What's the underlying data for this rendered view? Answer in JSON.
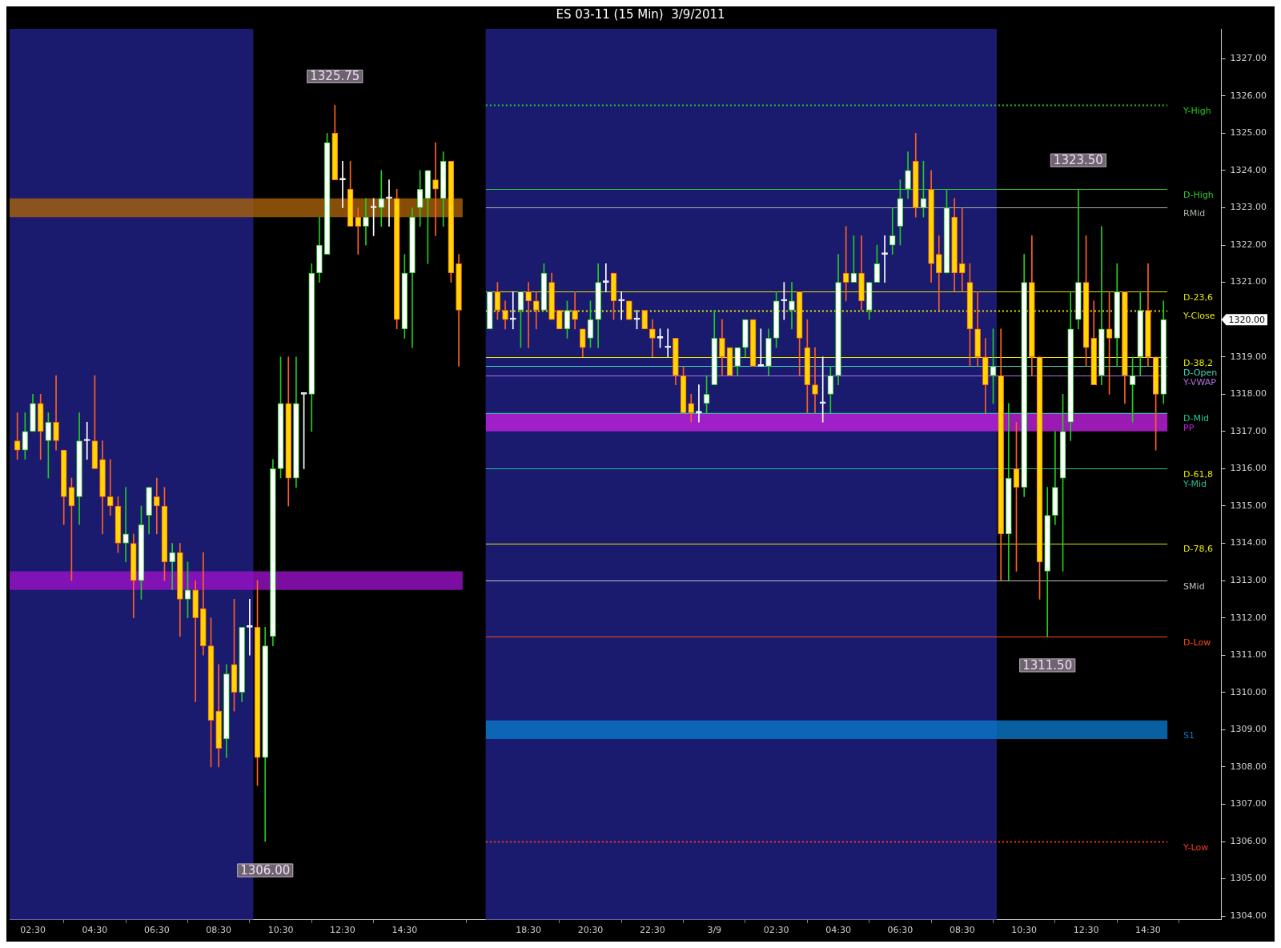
{
  "chart_data": {
    "type": "candlestick",
    "title": "ES 03-11 (15 Min)  3/9/2011",
    "x": [
      "2011-03-08T02:00",
      "2011-03-08T02:15",
      "2011-03-08T02:30",
      "2011-03-08T02:45",
      "2011-03-08T03:00",
      "2011-03-08T03:15",
      "2011-03-08T03:30",
      "2011-03-08T03:45",
      "2011-03-08T04:00",
      "2011-03-08T04:15",
      "2011-03-08T04:30",
      "2011-03-08T04:45",
      "2011-03-08T05:00",
      "2011-03-08T05:15",
      "2011-03-08T05:30",
      "2011-03-08T05:45",
      "2011-03-08T06:00",
      "2011-03-08T06:15",
      "2011-03-08T06:30",
      "2011-03-08T06:45",
      "2011-03-08T07:00",
      "2011-03-08T07:15",
      "2011-03-08T07:30",
      "2011-03-08T07:45",
      "2011-03-08T08:00",
      "2011-03-08T08:15",
      "2011-03-08T08:30",
      "2011-03-08T08:45",
      "2011-03-08T09:00",
      "2011-03-08T09:15",
      "2011-03-08T09:30",
      "2011-03-08T09:45",
      "2011-03-08T10:00",
      "2011-03-08T10:15",
      "2011-03-08T10:30",
      "2011-03-08T10:45",
      "2011-03-08T11:00",
      "2011-03-08T11:15",
      "2011-03-08T11:30",
      "2011-03-08T11:45",
      "2011-03-08T12:00",
      "2011-03-08T12:15",
      "2011-03-08T12:30",
      "2011-03-08T12:45",
      "2011-03-08T13:00",
      "2011-03-08T13:15",
      "2011-03-08T13:30",
      "2011-03-08T13:45",
      "2011-03-08T14:00",
      "2011-03-08T14:15",
      "2011-03-08T14:30",
      "2011-03-08T14:45",
      "2011-03-08T15:00",
      "2011-03-08T15:15",
      "2011-03-08T15:30",
      "2011-03-08T15:45",
      "2011-03-08T16:00",
      "2011-03-08T16:15",
      "2011-03-08T17:15",
      "2011-03-08T17:30",
      "2011-03-08T17:45",
      "2011-03-08T18:00",
      "2011-03-08T18:15",
      "2011-03-08T18:30",
      "2011-03-08T18:45",
      "2011-03-08T19:00",
      "2011-03-08T19:15",
      "2011-03-08T19:30",
      "2011-03-08T19:45",
      "2011-03-08T20:00",
      "2011-03-08T20:15",
      "2011-03-08T20:30",
      "2011-03-08T20:45",
      "2011-03-08T21:00",
      "2011-03-08T21:15",
      "2011-03-08T21:30",
      "2011-03-08T21:45",
      "2011-03-08T22:00",
      "2011-03-08T22:15",
      "2011-03-08T22:30",
      "2011-03-08T22:45",
      "2011-03-08T23:00",
      "2011-03-08T23:15",
      "2011-03-08T23:30",
      "2011-03-08T23:45",
      "2011-03-09T00:00",
      "2011-03-09T00:15",
      "2011-03-09T00:30",
      "2011-03-09T00:45",
      "2011-03-09T01:00",
      "2011-03-09T01:15",
      "2011-03-09T01:30",
      "2011-03-09T01:45",
      "2011-03-09T02:00",
      "2011-03-09T02:15",
      "2011-03-09T02:30",
      "2011-03-09T02:45",
      "2011-03-09T03:00",
      "2011-03-09T03:15",
      "2011-03-09T03:30",
      "2011-03-09T03:45",
      "2011-03-09T04:00",
      "2011-03-09T04:15",
      "2011-03-09T04:30",
      "2011-03-09T04:45",
      "2011-03-09T05:00",
      "2011-03-09T05:15",
      "2011-03-09T05:30",
      "2011-03-09T05:45",
      "2011-03-09T06:00",
      "2011-03-09T06:15",
      "2011-03-09T06:30",
      "2011-03-09T06:45",
      "2011-03-09T07:00",
      "2011-03-09T07:15",
      "2011-03-09T07:30",
      "2011-03-09T07:45",
      "2011-03-09T08:00",
      "2011-03-09T08:15",
      "2011-03-09T08:30",
      "2011-03-09T08:45",
      "2011-03-09T09:00",
      "2011-03-09T09:15",
      "2011-03-09T09:30",
      "2011-03-09T09:45",
      "2011-03-09T10:00",
      "2011-03-09T10:15",
      "2011-03-09T10:30",
      "2011-03-09T10:45",
      "2011-03-09T11:00",
      "2011-03-09T11:15",
      "2011-03-09T11:30",
      "2011-03-09T11:45",
      "2011-03-09T12:00",
      "2011-03-09T12:15",
      "2011-03-09T12:30",
      "2011-03-09T12:45",
      "2011-03-09T13:00",
      "2011-03-09T13:15",
      "2011-03-09T13:30",
      "2011-03-09T13:45",
      "2011-03-09T14:00",
      "2011-03-09T14:15",
      "2011-03-09T14:30",
      "2011-03-09T14:45",
      "2011-03-09T15:00"
    ],
    "ohlc": [
      [
        1316.75,
        1317.5,
        1316.25,
        1316.5
      ],
      [
        1316.5,
        1317.5,
        1316.25,
        1317.0
      ],
      [
        1317.0,
        1318.0,
        1317.0,
        1317.75
      ],
      [
        1317.75,
        1318.0,
        1316.25,
        1317.0
      ],
      [
        1316.75,
        1317.5,
        1315.75,
        1317.25
      ],
      [
        1317.25,
        1318.5,
        1316.5,
        1316.75
      ],
      [
        1316.5,
        1316.5,
        1314.5,
        1315.25
      ],
      [
        1315.5,
        1315.75,
        1313.0,
        1315.0
      ],
      [
        1315.25,
        1317.5,
        1314.5,
        1316.75
      ],
      [
        1316.75,
        1317.25,
        1316.25,
        1316.75
      ],
      [
        1316.75,
        1318.5,
        1316.0,
        1316.0
      ],
      [
        1316.25,
        1316.75,
        1314.25,
        1315.25
      ],
      [
        1315.25,
        1316.25,
        1314.75,
        1315.0
      ],
      [
        1315.0,
        1315.25,
        1313.75,
        1314.0
      ],
      [
        1314.0,
        1315.5,
        1313.5,
        1314.25
      ],
      [
        1314.0,
        1314.25,
        1312.0,
        1313.0
      ],
      [
        1313.0,
        1315.0,
        1312.5,
        1314.5
      ],
      [
        1314.75,
        1315.5,
        1314.25,
        1315.5
      ],
      [
        1315.25,
        1315.75,
        1314.25,
        1315.0
      ],
      [
        1315.0,
        1315.5,
        1313.0,
        1313.5
      ],
      [
        1313.5,
        1314.0,
        1312.75,
        1313.75
      ],
      [
        1313.75,
        1314.0,
        1311.5,
        1312.5
      ],
      [
        1312.5,
        1313.5,
        1312.0,
        1312.75
      ],
      [
        1312.75,
        1313.0,
        1309.75,
        1312.0
      ],
      [
        1312.25,
        1313.75,
        1311.0,
        1311.25
      ],
      [
        1311.25,
        1312.0,
        1308.0,
        1309.25
      ],
      [
        1309.5,
        1310.75,
        1308.0,
        1308.5
      ],
      [
        1308.75,
        1310.75,
        1308.25,
        1310.5
      ],
      [
        1310.75,
        1312.5,
        1309.5,
        1310.0
      ],
      [
        1310.0,
        1311.75,
        1309.75,
        1311.75
      ],
      [
        1311.75,
        1312.5,
        1311.0,
        1311.75
      ],
      [
        1311.75,
        1313.0,
        1307.5,
        1308.25
      ],
      [
        1308.25,
        1311.75,
        1306.0,
        1311.25
      ],
      [
        1311.5,
        1316.25,
        1311.25,
        1316.0
      ],
      [
        1316.0,
        1319.0,
        1315.75,
        1317.75
      ],
      [
        1317.75,
        1319.0,
        1315.0,
        1315.75
      ],
      [
        1315.75,
        1319.0,
        1315.5,
        1317.75
      ],
      [
        1318.0,
        1318.0,
        1316.0,
        1318.0
      ],
      [
        1318.0,
        1321.5,
        1317.0,
        1321.25
      ],
      [
        1321.25,
        1322.75,
        1321.0,
        1322.0
      ],
      [
        1321.75,
        1325.0,
        1321.75,
        1324.75
      ],
      [
        1325.0,
        1325.75,
        1323.75,
        1323.75
      ],
      [
        1323.75,
        1324.25,
        1323.0,
        1323.75
      ],
      [
        1323.5,
        1324.25,
        1322.5,
        1322.5
      ],
      [
        1322.75,
        1323.0,
        1321.75,
        1322.5
      ],
      [
        1322.5,
        1323.25,
        1322.0,
        1322.75
      ],
      [
        1323.0,
        1323.25,
        1322.25,
        1323.0
      ],
      [
        1323.0,
        1324.0,
        1322.5,
        1323.25
      ],
      [
        1323.25,
        1323.75,
        1322.5,
        1323.25
      ],
      [
        1323.25,
        1323.5,
        1319.75,
        1320.0
      ],
      [
        1319.75,
        1321.75,
        1319.5,
        1321.25
      ],
      [
        1321.25,
        1323.0,
        1319.25,
        1322.75
      ],
      [
        1323.0,
        1324.0,
        1322.5,
        1323.5
      ],
      [
        1323.25,
        1324.0,
        1321.5,
        1324.0
      ],
      [
        1323.75,
        1324.75,
        1322.25,
        1323.5
      ],
      [
        1323.25,
        1324.5,
        1322.5,
        1324.25
      ],
      [
        1324.25,
        1324.25,
        1321.0,
        1321.25
      ],
      [
        1321.5,
        1321.75,
        1318.75,
        1320.25
      ],
      [
        1319.75,
        1320.75,
        1319.75,
        1320.75
      ],
      [
        1320.75,
        1321.0,
        1320.0,
        1320.25
      ],
      [
        1320.25,
        1320.5,
        1319.75,
        1320.0
      ],
      [
        1320.0,
        1320.75,
        1319.75,
        1320.0
      ],
      [
        1320.25,
        1320.75,
        1319.25,
        1320.75
      ],
      [
        1320.75,
        1321.0,
        1319.25,
        1320.5
      ],
      [
        1320.5,
        1320.75,
        1319.75,
        1320.25
      ],
      [
        1320.25,
        1321.5,
        1320.25,
        1321.25
      ],
      [
        1321.0,
        1321.25,
        1320.0,
        1320.0
      ],
      [
        1320.25,
        1320.25,
        1319.75,
        1319.75
      ],
      [
        1319.75,
        1320.5,
        1319.5,
        1320.25
      ],
      [
        1320.25,
        1320.75,
        1319.75,
        1320.0
      ],
      [
        1319.75,
        1319.75,
        1319.0,
        1319.25
      ],
      [
        1319.5,
        1320.5,
        1319.25,
        1320.0
      ],
      [
        1320.0,
        1321.5,
        1319.25,
        1321.0
      ],
      [
        1321.0,
        1321.5,
        1320.75,
        1321.0
      ],
      [
        1321.25,
        1321.25,
        1320.0,
        1320.5
      ],
      [
        1320.5,
        1320.75,
        1320.0,
        1320.5
      ],
      [
        1320.5,
        1320.5,
        1320.0,
        1320.0
      ],
      [
        1320.0,
        1320.25,
        1319.75,
        1320.0
      ],
      [
        1320.25,
        1320.25,
        1319.75,
        1319.75
      ],
      [
        1319.75,
        1320.0,
        1319.0,
        1319.5
      ],
      [
        1319.5,
        1319.75,
        1319.25,
        1319.5
      ],
      [
        1319.25,
        1319.75,
        1319.0,
        1319.25
      ],
      [
        1319.5,
        1319.5,
        1318.25,
        1318.5
      ],
      [
        1318.5,
        1318.75,
        1317.5,
        1317.5
      ],
      [
        1317.75,
        1318.0,
        1317.25,
        1317.5
      ],
      [
        1317.5,
        1318.25,
        1317.25,
        1317.5
      ],
      [
        1317.75,
        1318.5,
        1317.5,
        1318.0
      ],
      [
        1318.25,
        1320.25,
        1318.25,
        1319.5
      ],
      [
        1319.5,
        1320.0,
        1318.5,
        1319.0
      ],
      [
        1319.25,
        1319.25,
        1318.5,
        1318.5
      ],
      [
        1318.75,
        1319.25,
        1318.5,
        1319.25
      ],
      [
        1319.25,
        1320.0,
        1319.0,
        1320.0
      ],
      [
        1320.0,
        1320.0,
        1318.75,
        1318.75
      ],
      [
        1318.75,
        1319.75,
        1318.75,
        1318.75
      ],
      [
        1318.75,
        1319.75,
        1318.5,
        1319.5
      ],
      [
        1319.5,
        1320.75,
        1319.25,
        1320.5
      ],
      [
        1320.5,
        1321.0,
        1320.0,
        1320.5
      ],
      [
        1320.25,
        1321.0,
        1319.75,
        1320.5
      ],
      [
        1320.75,
        1320.75,
        1318.5,
        1319.5
      ],
      [
        1319.25,
        1320.0,
        1317.5,
        1318.25
      ],
      [
        1318.25,
        1319.25,
        1317.5,
        1318.0
      ],
      [
        1317.75,
        1319.0,
        1317.25,
        1317.75
      ],
      [
        1318.0,
        1318.75,
        1317.5,
        1318.5
      ],
      [
        1318.5,
        1321.75,
        1318.25,
        1321.0
      ],
      [
        1321.25,
        1322.5,
        1320.5,
        1321.0
      ],
      [
        1321.0,
        1322.25,
        1321.0,
        1321.25
      ],
      [
        1321.25,
        1322.25,
        1320.25,
        1320.5
      ],
      [
        1320.25,
        1321.0,
        1320.0,
        1321.0
      ],
      [
        1321.0,
        1322.0,
        1321.0,
        1321.5
      ],
      [
        1321.75,
        1322.25,
        1321.0,
        1321.75
      ],
      [
        1322.0,
        1323.0,
        1321.75,
        1322.25
      ],
      [
        1322.5,
        1323.75,
        1322.0,
        1323.25
      ],
      [
        1323.5,
        1324.5,
        1323.25,
        1324.0
      ],
      [
        1324.25,
        1325.0,
        1322.75,
        1323.0
      ],
      [
        1323.0,
        1324.25,
        1322.75,
        1323.25
      ],
      [
        1323.5,
        1324.0,
        1321.0,
        1321.5
      ],
      [
        1321.75,
        1322.25,
        1320.25,
        1321.25
      ],
      [
        1321.25,
        1323.5,
        1321.25,
        1323.0
      ],
      [
        1322.75,
        1323.25,
        1320.75,
        1321.25
      ],
      [
        1321.5,
        1323.0,
        1320.75,
        1321.25
      ],
      [
        1321.0,
        1321.5,
        1318.75,
        1319.75
      ],
      [
        1319.75,
        1320.75,
        1318.75,
        1319.0
      ],
      [
        1319.0,
        1319.5,
        1317.5,
        1318.25
      ],
      [
        1318.5,
        1319.75,
        1317.75,
        1318.75
      ],
      [
        1318.5,
        1319.75,
        1313.0,
        1314.25
      ],
      [
        1314.25,
        1317.75,
        1313.0,
        1315.75
      ],
      [
        1316.0,
        1317.25,
        1313.25,
        1315.5
      ],
      [
        1315.5,
        1321.75,
        1315.25,
        1321.0
      ],
      [
        1321.0,
        1322.25,
        1318.5,
        1319.0
      ],
      [
        1319.0,
        1319.0,
        1312.5,
        1313.5
      ],
      [
        1313.25,
        1315.5,
        1311.5,
        1314.75
      ],
      [
        1314.75,
        1317.0,
        1314.5,
        1315.5
      ],
      [
        1315.75,
        1318.0,
        1313.25,
        1317.0
      ],
      [
        1317.25,
        1320.75,
        1316.75,
        1319.75
      ],
      [
        1320.0,
        1323.5,
        1319.75,
        1321.0
      ],
      [
        1321.0,
        1322.25,
        1318.75,
        1319.25
      ],
      [
        1319.5,
        1320.5,
        1318.25,
        1318.25
      ],
      [
        1318.5,
        1322.5,
        1318.25,
        1319.75
      ],
      [
        1319.75,
        1320.75,
        1318.0,
        1319.5
      ],
      [
        1319.5,
        1321.5,
        1318.75,
        1320.75
      ],
      [
        1320.75,
        1320.75,
        1317.75,
        1318.5
      ],
      [
        1318.25,
        1319.0,
        1317.25,
        1318.5
      ],
      [
        1319.0,
        1320.75,
        1318.5,
        1320.25
      ],
      [
        1320.25,
        1321.5,
        1318.75,
        1319.0
      ],
      [
        1319.0,
        1319.0,
        1316.5,
        1318.0
      ],
      [
        1318.0,
        1320.5,
        1317.75,
        1320.0
      ]
    ],
    "xlim": [
      "2011-03-08T01:45",
      "2011-03-09T16:52"
    ],
    "xticks": [
      {
        "value": "2011-03-08T02:30",
        "label": "02:30"
      },
      {
        "value": "2011-03-08T04:30",
        "label": "04:30"
      },
      {
        "value": "2011-03-08T06:30",
        "label": "06:30"
      },
      {
        "value": "2011-03-08T08:30",
        "label": "08:30"
      },
      {
        "value": "2011-03-08T10:30",
        "label": "10:30"
      },
      {
        "value": "2011-03-08T12:30",
        "label": "12:30"
      },
      {
        "value": "2011-03-08T14:30",
        "label": "14:30"
      },
      {
        "value": "2011-03-08T18:30",
        "label": "18:30"
      },
      {
        "value": "2011-03-08T20:30",
        "label": "20:30"
      },
      {
        "value": "2011-03-08T22:30",
        "label": "22:30"
      },
      {
        "value": "2011-03-09T00:30",
        "label": "3/9"
      },
      {
        "value": "2011-03-09T02:30",
        "label": "02:30"
      },
      {
        "value": "2011-03-09T04:30",
        "label": "04:30"
      },
      {
        "value": "2011-03-09T06:30",
        "label": "06:30"
      },
      {
        "value": "2011-03-09T08:30",
        "label": "08:30"
      },
      {
        "value": "2011-03-09T10:30",
        "label": "10:30"
      },
      {
        "value": "2011-03-09T12:30",
        "label": "12:30"
      },
      {
        "value": "2011-03-09T14:30",
        "label": "14:30"
      }
    ],
    "ylim": [
      1303.9,
      1327.8
    ],
    "yticks": [
      {
        "value": 1304,
        "label": "1304.00"
      },
      {
        "value": 1305,
        "label": "1305.00"
      },
      {
        "value": 1306,
        "label": "1306.00"
      },
      {
        "value": 1307,
        "label": "1307.00"
      },
      {
        "value": 1308,
        "label": "1308.00"
      },
      {
        "value": 1309,
        "label": "1309.00"
      },
      {
        "value": 1310,
        "label": "1310.00"
      },
      {
        "value": 1311,
        "label": "1311.00"
      },
      {
        "value": 1312,
        "label": "1312.00"
      },
      {
        "value": 1313,
        "label": "1313.00"
      },
      {
        "value": 1314,
        "label": "1314.00"
      },
      {
        "value": 1315,
        "label": "1315.00"
      },
      {
        "value": 1316,
        "label": "1316.00"
      },
      {
        "value": 1317,
        "label": "1317.00"
      },
      {
        "value": 1318,
        "label": "1318.00"
      },
      {
        "value": 1319,
        "label": "1319.00"
      },
      {
        "value": 1320,
        "label": "1320.00"
      },
      {
        "value": 1321,
        "label": "1321.00"
      },
      {
        "value": 1322,
        "label": "1322.00"
      },
      {
        "value": 1323,
        "label": "1323.00"
      },
      {
        "value": 1324,
        "label": "1324.00"
      },
      {
        "value": 1325,
        "label": "1325.00"
      },
      {
        "value": 1326,
        "label": "1326.00"
      },
      {
        "value": 1327,
        "label": "1327.00"
      }
    ],
    "ref_lines": [
      {
        "axis": "y",
        "value": 1325.75,
        "label": "Y-High",
        "color": "#22cc22",
        "line_style": "dotted"
      },
      {
        "axis": "y",
        "value": 1323.5,
        "label": "D-High",
        "color": "#33cc33"
      },
      {
        "axis": "y",
        "value": 1323.0,
        "label": "RMid",
        "color": "#a8b4a8"
      },
      {
        "axis": "y",
        "value": 1320.75,
        "label": "D-23,6",
        "color": "#e6e600"
      },
      {
        "axis": "y",
        "value": 1320.25,
        "label": "Y-Close",
        "color": "#e6e600",
        "line_style": "dotted"
      },
      {
        "axis": "y",
        "value": 1319.0,
        "label": "D-38,2",
        "color": "#e6e600"
      },
      {
        "axis": "y",
        "value": 1318.75,
        "label": "D-Open",
        "color": "#40d8c0"
      },
      {
        "axis": "y",
        "value": 1318.5,
        "label": "Y-VWAP",
        "color": "#b070e0"
      },
      {
        "axis": "y",
        "value": 1317.5,
        "label": "D-Mid",
        "color": "#20c890"
      },
      {
        "axis": "y",
        "value": 1316.0,
        "label": "D-61,8",
        "color": "#e6e600"
      },
      {
        "axis": "y",
        "value": 1316.0,
        "label": "Y-Mid",
        "color": "#20c0a0"
      },
      {
        "axis": "y",
        "value": 1314.0,
        "label": "D-78,6",
        "color": "#e6e600"
      },
      {
        "axis": "y",
        "value": 1313.0,
        "label": "SMid",
        "color": "#c0c0c0"
      },
      {
        "axis": "y",
        "value": 1311.5,
        "label": "D-Low",
        "color": "#ff4a1a"
      },
      {
        "axis": "y",
        "value": 1306.0,
        "label": "Y-Low",
        "color": "#ff3a1a",
        "line_style": "dotted"
      }
    ],
    "bands": [
      {
        "axis": "x",
        "from": "2011-03-08T01:45",
        "to": "2011-03-08T09:37",
        "color": "#1a1a6e"
      },
      {
        "axis": "x",
        "from": "2011-03-08T17:07",
        "to": "2011-03-09T09:37",
        "color": "#1a1a6e"
      },
      {
        "axis": "y",
        "from": 1322.75,
        "to": 1323.25,
        "color": "#a8620a"
      },
      {
        "axis": "y",
        "from": 1312.75,
        "to": 1313.25,
        "color": "#9a10c8"
      },
      {
        "axis": "y",
        "from": 1317.0,
        "to": 1317.5,
        "label": "PP",
        "color": "#c020e0"
      },
      {
        "axis": "y",
        "from": 1308.75,
        "to": 1309.25,
        "label": "S1",
        "color": "#0a78c8"
      }
    ],
    "annotations": [
      {
        "text": "1325.75",
        "x": "2011-03-08T12:15",
        "y": 1325.75
      },
      {
        "text": "1306.00",
        "x": "2011-03-08T10:00",
        "y": 1306.0
      },
      {
        "text": "1323.50",
        "x": "2011-03-09T12:15",
        "y": 1323.5
      },
      {
        "text": "1311.50",
        "x": "2011-03-09T11:15",
        "y": 1311.5
      }
    ],
    "grid": false,
    "legend": false
  }
}
